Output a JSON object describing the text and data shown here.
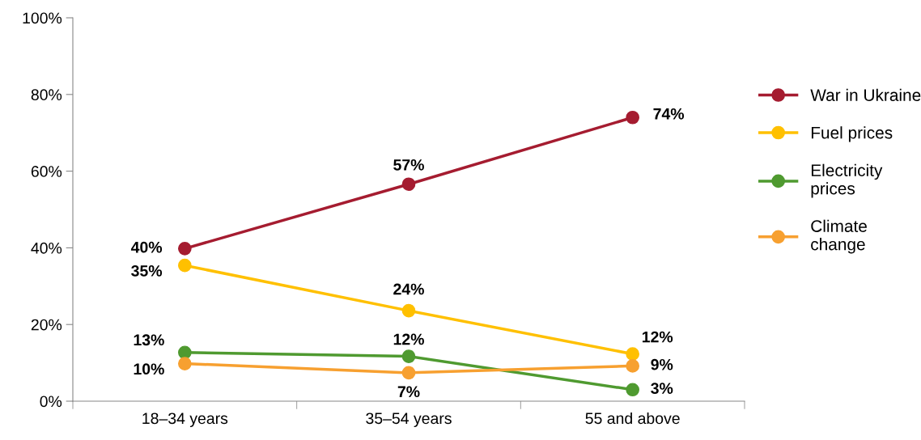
{
  "chart_data": {
    "type": "line",
    "categories": [
      "18–34 years",
      "35–54 years",
      "55 and above"
    ],
    "series": [
      {
        "name": "War in Ukraine",
        "color": "#a51c30",
        "values": [
          39.8,
          56.6,
          74
        ],
        "value_labels": [
          "40%",
          "57%",
          "74%"
        ]
      },
      {
        "name": "Fuel prices",
        "color": "#ffc000",
        "values": [
          35.4,
          23.6,
          12.3
        ],
        "value_labels": [
          "35%",
          "24%",
          "12%"
        ]
      },
      {
        "name": "Electricity\nprices",
        "color": "#4f9a30",
        "values": [
          12.7,
          11.7,
          3
        ],
        "value_labels": [
          "13%",
          "12%",
          "3%"
        ]
      },
      {
        "name": "Climate\nchange",
        "color": "#f7a030",
        "values": [
          9.8,
          7.4,
          9.2
        ],
        "value_labels": [
          "10%",
          "7%",
          "9%"
        ]
      }
    ],
    "ylim": [
      0,
      100
    ],
    "yticks": [
      {
        "value": 0,
        "label": "0%"
      },
      {
        "value": 20,
        "label": "20%"
      },
      {
        "value": 40,
        "label": "40%"
      },
      {
        "value": 60,
        "label": "60%"
      },
      {
        "value": 80,
        "label": "80%"
      },
      {
        "value": 100,
        "label": "100%"
      }
    ],
    "legend": "right",
    "marker": "circle",
    "line_style": "solid",
    "grid": false
  }
}
